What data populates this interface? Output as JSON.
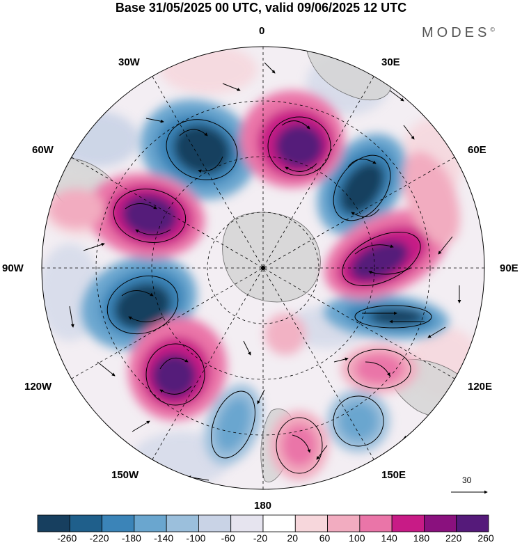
{
  "title": "Base 31/05/2025 00 UTC, valid 09/06/2025 12 UTC",
  "brand": "MODES",
  "brand_mark": "©",
  "longitude_labels": {
    "lon0": "0",
    "lon30e": "30E",
    "lon60e": "60E",
    "lon90e": "90E",
    "lon120e": "120E",
    "lon150e": "150E",
    "lon180": "180",
    "lon150w": "150W",
    "lon120w": "120W",
    "lon90w": "90W",
    "lon60w": "60W",
    "lon30w": "30W"
  },
  "reference_vector_label": "30",
  "colorbar": {
    "tick_labels": [
      "-260",
      "-220",
      "-180",
      "-140",
      "-100",
      "-60",
      "-20",
      "20",
      "60",
      "100",
      "140",
      "180",
      "220",
      "260"
    ],
    "colors": [
      "#173f5f",
      "#1f5f8b",
      "#3b84b8",
      "#6aa6cf",
      "#9bbfdc",
      "#c9d3e6",
      "#e6e4ef",
      "#ffffff",
      "#f7d7dc",
      "#f2acc0",
      "#ea75a8",
      "#c81b86",
      "#8a117e",
      "#551a7a"
    ]
  },
  "map_colors": {
    "land": "#d5d5d5",
    "coast": "#555555",
    "graticule": "#000000"
  }
}
